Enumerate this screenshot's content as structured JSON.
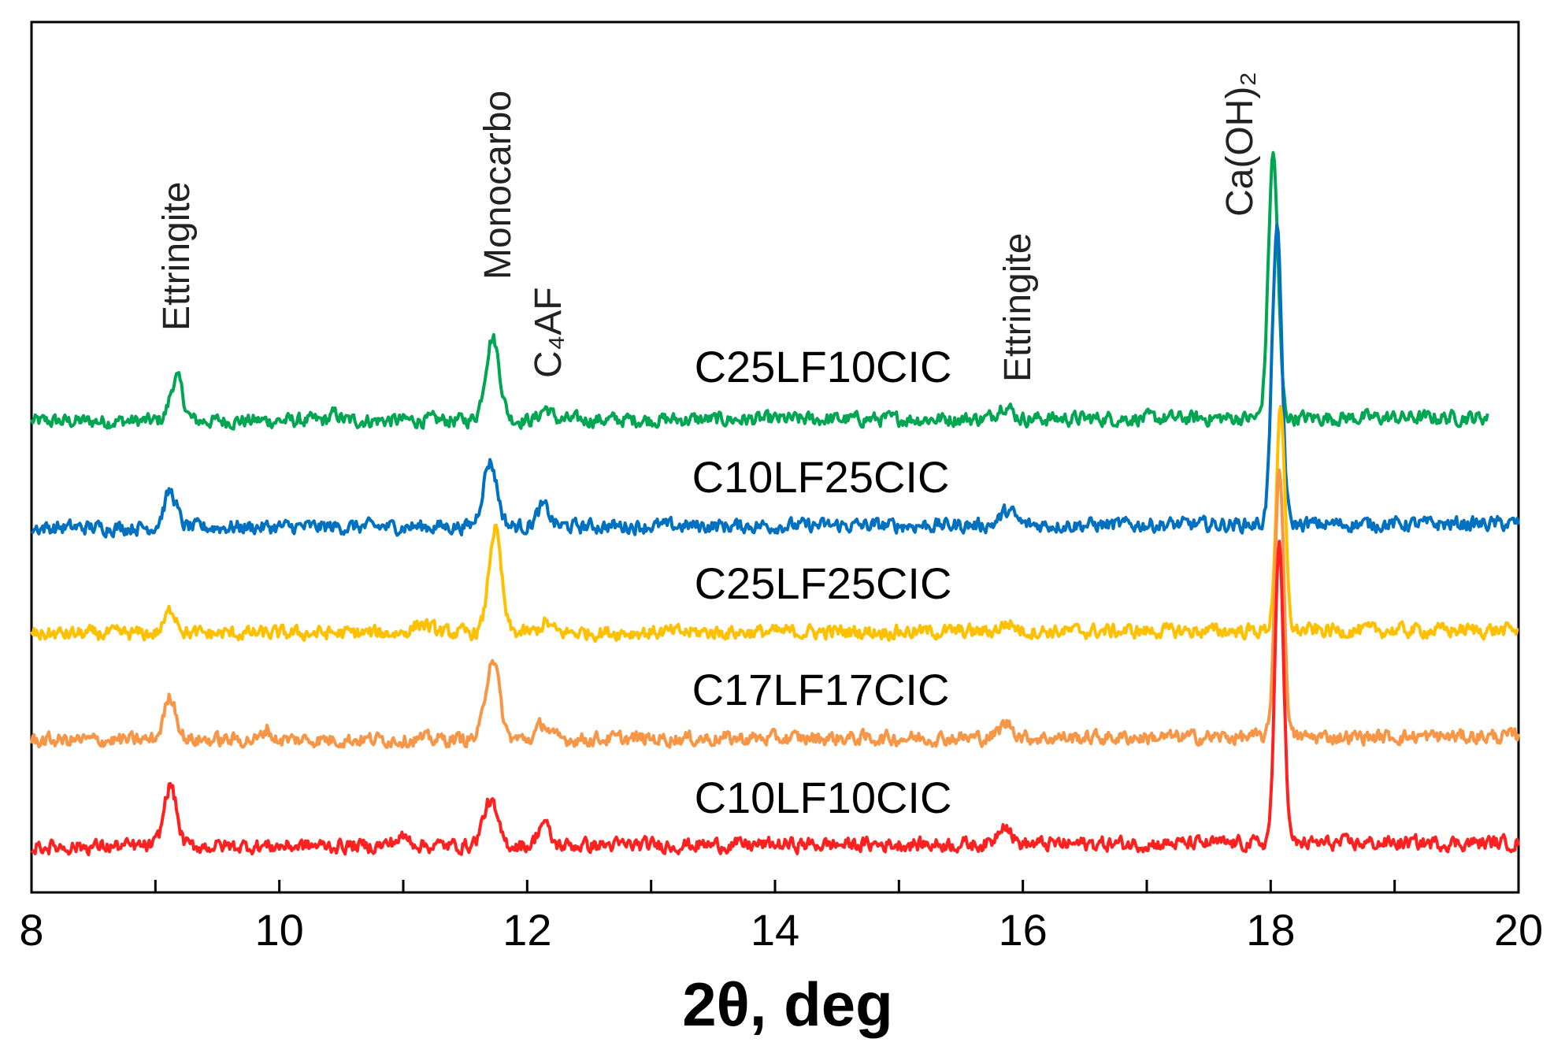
{
  "chart_data": {
    "type": "line",
    "title": "",
    "xlabel": "2θ, deg",
    "ylabel": "",
    "xlim": [
      8,
      20
    ],
    "xticks": [
      "8",
      "10",
      "12",
      "14",
      "16",
      "18",
      "20"
    ],
    "grid": false,
    "annotations": [
      {
        "text": "Ettringite",
        "x": 9.2
      },
      {
        "text": "Monocarbo",
        "x": 11.8
      },
      {
        "text": "C₄AF",
        "x": 12.2
      },
      {
        "text": "Ettringite",
        "x": 15.9
      },
      {
        "text": "Ca(OH)₂",
        "x": 17.85
      }
    ],
    "series": [
      {
        "name": "C25LF10CIC",
        "color": "#00a651",
        "offset": 4,
        "x_end": 19.75,
        "peaks": [
          [
            9.17,
            0.55,
            0.07
          ],
          [
            10.45,
            0.08,
            0.05
          ],
          [
            11.72,
            1.05,
            0.08
          ],
          [
            12.15,
            0.15,
            0.06
          ],
          [
            15.85,
            0.18,
            0.08
          ],
          [
            18.02,
            3.35,
            0.055
          ]
        ]
      },
      {
        "name": "C10LF25CIC",
        "color": "#0070c0",
        "offset": 3,
        "x_end": 20,
        "peaks": [
          [
            9.12,
            0.45,
            0.07
          ],
          [
            11.7,
            0.82,
            0.08
          ],
          [
            12.13,
            0.25,
            0.07
          ],
          [
            15.88,
            0.18,
            0.08
          ],
          [
            18.05,
            3.75,
            0.055
          ]
        ]
      },
      {
        "name": "C25LF25CIC",
        "color": "#ffc000",
        "offset": 2,
        "x_end": 20,
        "peaks": [
          [
            9.13,
            0.3,
            0.07
          ],
          [
            11.15,
            0.12,
            0.1
          ],
          [
            11.74,
            1.32,
            0.07
          ],
          [
            12.15,
            0.12,
            0.06
          ],
          [
            15.88,
            0.1,
            0.08
          ],
          [
            18.08,
            2.78,
            0.05
          ]
        ]
      },
      {
        "name": "C17LF17CIC",
        "color": "#f79646",
        "offset": 1,
        "x_end": 20,
        "peaks": [
          [
            9.12,
            0.55,
            0.07
          ],
          [
            9.9,
            0.15,
            0.04
          ],
          [
            11.72,
            1.05,
            0.075
          ],
          [
            12.13,
            0.2,
            0.06
          ],
          [
            15.87,
            0.18,
            0.08
          ],
          [
            18.07,
            3.45,
            0.05
          ]
        ]
      },
      {
        "name": "C10LF10CIC",
        "color": "#ff2020",
        "offset": 0,
        "x_end": 20,
        "peaks": [
          [
            9.12,
            0.78,
            0.07
          ],
          [
            11.0,
            0.1,
            0.1
          ],
          [
            11.7,
            0.55,
            0.08
          ],
          [
            12.13,
            0.3,
            0.06
          ],
          [
            15.85,
            0.28,
            0.07
          ],
          [
            18.07,
            3.8,
            0.05
          ]
        ]
      }
    ]
  }
}
